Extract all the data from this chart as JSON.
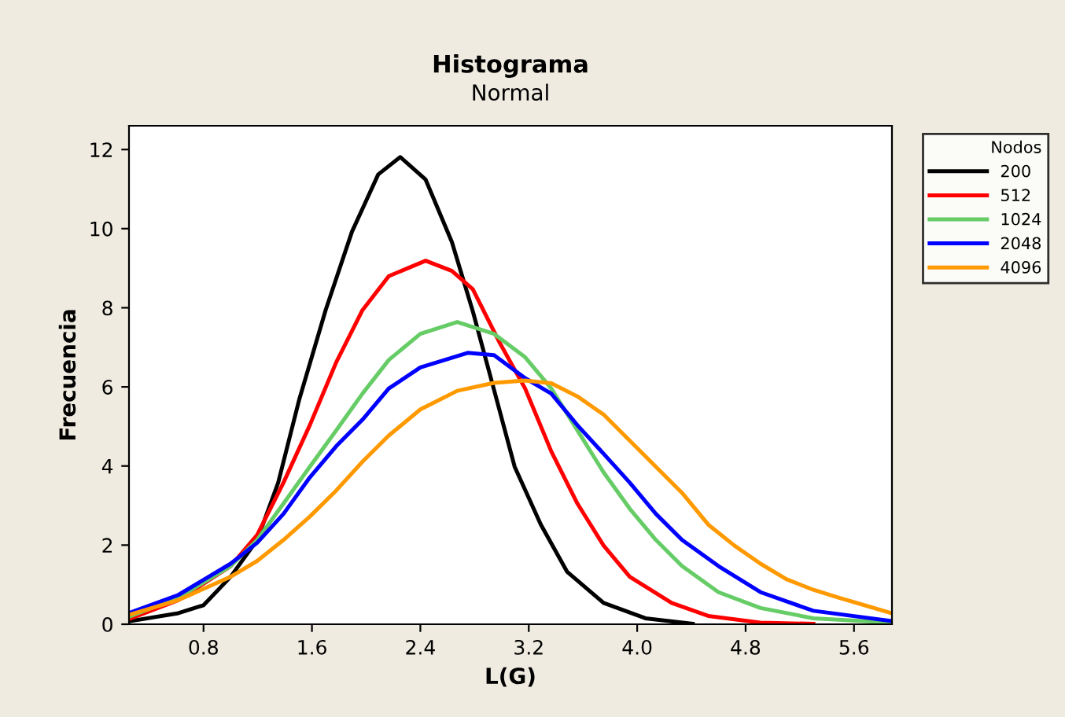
{
  "chart_data": {
    "type": "line",
    "title": "Histograma",
    "subtitle": "Normal",
    "xlabel": "L(G)",
    "ylabel": "Frecuencia",
    "legend_title": "Nodos",
    "legend": "right",
    "grid": false,
    "marker": "none",
    "line_style": "solid",
    "xlim": [
      0.25,
      5.88
    ],
    "ylim": [
      0,
      12.6
    ],
    "xticks": [
      0.8,
      1.6,
      2.4,
      3.2,
      {
        "value": 4.0,
        "label": "4.0"
      },
      4.8,
      5.6
    ],
    "yticks": [
      0,
      2,
      4,
      6,
      8,
      10,
      12
    ],
    "series": [
      {
        "name": "200",
        "color": "#000000",
        "x": [
          0.264,
          0.614,
          0.8,
          1.0,
          1.196,
          1.351,
          1.507,
          1.701,
          1.895,
          2.089,
          2.252,
          2.439,
          2.633,
          2.788,
          2.941,
          3.096,
          3.289,
          3.482,
          3.752,
          4.061,
          4.41
        ],
        "values": [
          0.08,
          0.28,
          0.48,
          1.2,
          2.13,
          3.58,
          5.69,
          7.94,
          9.92,
          11.37,
          11.81,
          11.24,
          9.66,
          7.9,
          5.96,
          3.98,
          2.52,
          1.33,
          0.54,
          0.15,
          0.01
        ]
      },
      {
        "name": "512",
        "color": "#ff0000",
        "x": [
          0.264,
          0.614,
          1.0,
          1.196,
          1.39,
          1.584,
          1.779,
          1.973,
          2.167,
          2.439,
          2.633,
          2.787,
          2.98,
          3.173,
          3.366,
          3.559,
          3.752,
          3.945,
          4.254,
          4.524,
          4.91,
          5.3
        ],
        "values": [
          0.15,
          0.61,
          1.47,
          2.26,
          3.58,
          5.03,
          6.62,
          7.94,
          8.8,
          9.19,
          8.93,
          8.47,
          7.15,
          5.96,
          4.37,
          3.05,
          1.99,
          1.2,
          0.54,
          0.21,
          0.04,
          0.01
        ]
      },
      {
        "name": "1024",
        "color": "#66cc66",
        "x": [
          0.264,
          0.614,
          1.0,
          1.196,
          1.39,
          1.584,
          1.779,
          1.973,
          2.167,
          2.4,
          2.672,
          2.944,
          3.173,
          3.366,
          3.559,
          3.752,
          3.945,
          4.138,
          4.331,
          4.6,
          4.91,
          5.3,
          5.876
        ],
        "values": [
          0.21,
          0.67,
          1.47,
          2.13,
          3.05,
          3.98,
          4.9,
          5.83,
          6.68,
          7.34,
          7.64,
          7.34,
          6.75,
          5.96,
          4.9,
          3.84,
          2.92,
          2.13,
          1.47,
          0.81,
          0.41,
          0.15,
          0.04
        ]
      },
      {
        "name": "2048",
        "color": "#0000ff",
        "x": [
          0.264,
          0.614,
          1.0,
          1.196,
          1.39,
          1.584,
          1.779,
          1.973,
          2.167,
          2.4,
          2.749,
          2.944,
          3.173,
          3.366,
          3.559,
          3.752,
          3.945,
          4.138,
          4.331,
          4.6,
          4.91,
          5.3,
          5.876
        ],
        "values": [
          0.3,
          0.74,
          1.53,
          2.06,
          2.79,
          3.71,
          4.5,
          5.17,
          5.96,
          6.49,
          6.86,
          6.8,
          6.22,
          5.83,
          5.03,
          4.31,
          3.58,
          2.79,
          2.13,
          1.47,
          0.81,
          0.34,
          0.08
        ]
      },
      {
        "name": "4096",
        "color": "#ff9900",
        "x": [
          0.264,
          0.614,
          1.0,
          1.196,
          1.39,
          1.584,
          1.779,
          1.973,
          2.167,
          2.4,
          2.672,
          2.944,
          3.173,
          3.366,
          3.559,
          3.752,
          3.945,
          4.138,
          4.331,
          4.524,
          4.717,
          4.91,
          5.1,
          5.3,
          5.49,
          5.876
        ],
        "values": [
          0.25,
          0.61,
          1.2,
          1.6,
          2.13,
          2.72,
          3.38,
          4.11,
          4.77,
          5.43,
          5.9,
          6.1,
          6.16,
          6.09,
          5.76,
          5.3,
          4.64,
          3.98,
          3.32,
          2.52,
          1.99,
          1.53,
          1.14,
          0.87,
          0.67,
          0.28
        ]
      }
    ]
  }
}
